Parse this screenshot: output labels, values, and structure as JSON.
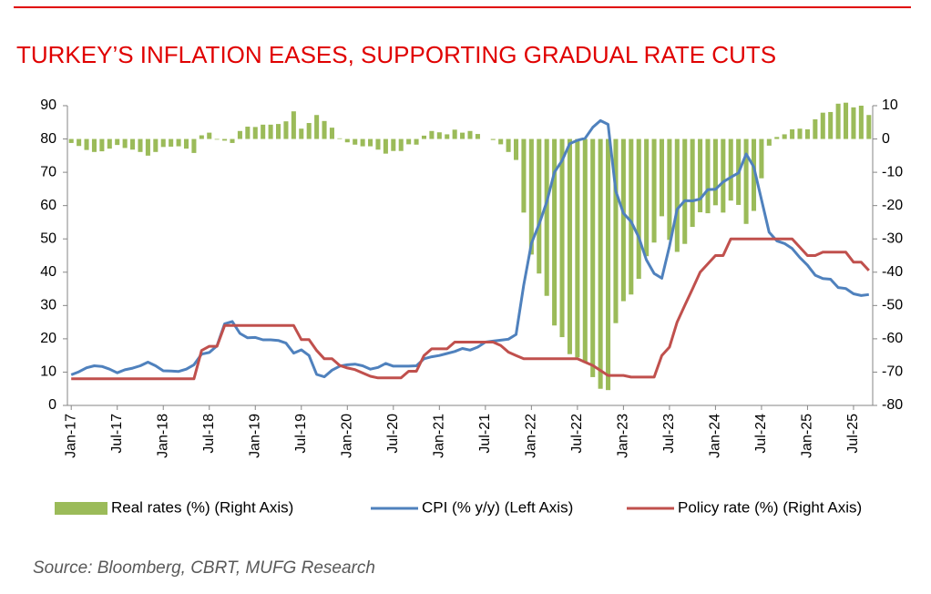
{
  "chart_data": {
    "type": "combo",
    "title": "TURKEY’S INFLATION EASES, SUPPORTING GRADUAL RATE CUTS",
    "source": "Source: Bloomberg, CBRT, MUFG Research",
    "categories": [
      "Jan-17",
      null,
      null,
      null,
      null,
      null,
      "Jul-17",
      null,
      null,
      null,
      null,
      null,
      "Jan-18",
      null,
      null,
      null,
      null,
      null,
      "Jul-18",
      null,
      null,
      null,
      null,
      null,
      "Jan-19",
      null,
      null,
      null,
      null,
      null,
      "Jul-19",
      null,
      null,
      null,
      null,
      null,
      "Jan-20",
      null,
      null,
      null,
      null,
      null,
      "Jul-20",
      null,
      null,
      null,
      null,
      null,
      "Jan-21",
      null,
      null,
      null,
      null,
      null,
      "Jul-21",
      null,
      null,
      null,
      null,
      null,
      "Jan-22",
      null,
      null,
      null,
      null,
      null,
      "Jul-22",
      null,
      null,
      null,
      null,
      null,
      "Jan-23",
      null,
      null,
      null,
      null,
      null,
      "Jul-23",
      null,
      null,
      null,
      null,
      null,
      "Jan-24",
      null,
      null,
      null,
      null,
      null,
      "Jul-24",
      null,
      null,
      null,
      null,
      null,
      "Jan-25",
      null,
      null,
      null,
      null,
      null,
      "Jul-25",
      null,
      null
    ],
    "series": [
      {
        "name": "Real rates (%) (Right Axis)",
        "type": "bar",
        "axis": "y2",
        "color": "#9bbb59",
        "values": [
          -1.2,
          -2.1,
          -3.3,
          -3.9,
          -3.7,
          -2.9,
          -1.8,
          -2.7,
          -3.2,
          -3.9,
          -5.0,
          -3.9,
          -2.4,
          -2.3,
          -2.2,
          -2.9,
          -4.2,
          1.1,
          1.9,
          -0.2,
          -0.5,
          -1.2,
          2.4,
          3.7,
          3.6,
          4.3,
          4.3,
          4.5,
          5.3,
          8.3,
          3.1,
          4.8,
          7.2,
          5.4,
          3.4,
          0.2,
          -1.0,
          -1.7,
          -2.2,
          -2.2,
          -3.2,
          -4.4,
          -3.6,
          -3.6,
          -1.6,
          -1.7,
          1.0,
          2.4,
          2.0,
          1.4,
          2.8,
          1.9,
          2.4,
          1.5,
          0,
          -0.3,
          -1.6,
          -3.9,
          -6.3,
          -22.1,
          -34.7,
          -40.4,
          -47.1,
          -56,
          -59.5,
          -64.6,
          -65.6,
          -67.2,
          -71.5,
          -75,
          -75.4,
          -55.3,
          -48.7,
          -46.7,
          -42,
          -35.2,
          -31.1,
          -23.2,
          -30.3,
          -33.9,
          -31.5,
          -26.4,
          -22,
          -22.3,
          -19.9,
          -22.1,
          -18.5,
          -19.8,
          -25.5,
          -21.6,
          -11.8,
          -2,
          0.6,
          1.4,
          2.9,
          3.1,
          2.9,
          5.9,
          7.9,
          8.1,
          10.6,
          10.9,
          9.5,
          10,
          7.2
        ]
      },
      {
        "name": "CPI (% y/y) (Left Axis)",
        "type": "line",
        "axis": "y",
        "color": "#4f81bd",
        "values": [
          9.2,
          10.1,
          11.3,
          11.9,
          11.7,
          10.9,
          9.8,
          10.7,
          11.2,
          11.9,
          13.0,
          11.9,
          10.4,
          10.3,
          10.2,
          10.9,
          12.2,
          15.4,
          15.9,
          17.9,
          24.5,
          25.2,
          21.6,
          20.3,
          20.4,
          19.7,
          19.7,
          19.5,
          18.7,
          15.7,
          16.7,
          15.0,
          9.3,
          8.6,
          10.6,
          11.8,
          12.2,
          12.4,
          11.9,
          10.9,
          11.4,
          12.6,
          11.8,
          11.8,
          11.8,
          11.9,
          14.0,
          14.6,
          15.0,
          15.6,
          16.2,
          17.1,
          16.6,
          17.5,
          19.0,
          19.3,
          19.6,
          19.9,
          21.3,
          36.1,
          48.7,
          54.4,
          61.1,
          70.0,
          73.5,
          78.6,
          79.6,
          80.2,
          83.5,
          85.5,
          84.4,
          64.3,
          57.7,
          55.2,
          50.5,
          43.7,
          39.6,
          38.2,
          47.8,
          58.9,
          61.5,
          61.4,
          62.0,
          64.8,
          64.9,
          67.1,
          68.5,
          69.8,
          75.5,
          71.6,
          61.8,
          52.0,
          49.4,
          48.6,
          47.1,
          44.4,
          42.1,
          39.1,
          38.1,
          37.9,
          35.4,
          35.1,
          33.5,
          33.0,
          33.3
        ]
      },
      {
        "name": "Policy rate (%) (Right Axis)",
        "type": "line",
        "axis": "y",
        "color": "#c0504d",
        "values": [
          8,
          8,
          8,
          8,
          8,
          8,
          8,
          8,
          8,
          8,
          8,
          8,
          8,
          8,
          8,
          8,
          8,
          16.5,
          17.75,
          17.75,
          24,
          24,
          24,
          24,
          24,
          24,
          24,
          24,
          24,
          24,
          19.75,
          19.75,
          16.5,
          14,
          14,
          12,
          11.25,
          10.75,
          9.75,
          8.75,
          8.25,
          8.25,
          8.25,
          8.25,
          10.25,
          10.25,
          15,
          17,
          17,
          17,
          19,
          19,
          19,
          19,
          19,
          19,
          18,
          16,
          15,
          14,
          14,
          14,
          14,
          14,
          14,
          14,
          14,
          13,
          12,
          10.5,
          9,
          9,
          9,
          8.5,
          8.5,
          8.5,
          8.5,
          15,
          17.5,
          25,
          30,
          35,
          40,
          42.5,
          45,
          45,
          50,
          50,
          50,
          50,
          50,
          50,
          50,
          50,
          50,
          47.5,
          45,
          45,
          46,
          46,
          46,
          46,
          43,
          43,
          40.5
        ]
      }
    ],
    "ylim": [
      0,
      90
    ],
    "yticks": [
      0,
      10,
      20,
      30,
      40,
      50,
      60,
      70,
      80,
      90
    ],
    "y2lim": [
      -80,
      10
    ],
    "y2ticks": [
      -80,
      -70,
      -60,
      -50,
      -40,
      -30,
      -20,
      -10,
      0,
      10
    ],
    "grid": false
  }
}
